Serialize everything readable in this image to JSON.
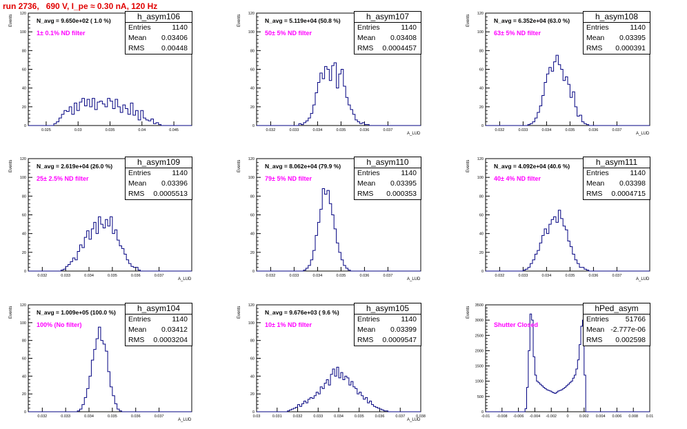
{
  "title": "run 2736,   690 V, I_pe ≈ 0.30 nA, 120 Hz",
  "chart_data": [
    {
      "type": "bar",
      "name": "h_asym106",
      "entries": "1140",
      "mean": "0.03406",
      "rms": "0.00448",
      "n_avg": "N_avg = 9.650e+02 ( 1.0 %)",
      "filter": "1± 0.1% ND filter",
      "xlim": [
        0.0222,
        0.0478
      ],
      "ylim": [
        0,
        120
      ],
      "xticks": [
        0.025,
        0.03,
        0.035,
        0.04,
        0.045
      ],
      "xtick_labels": [
        "0.025",
        "0.03",
        "0.035",
        "0.04",
        "0.045"
      ],
      "yticks": [
        0,
        20,
        40,
        60,
        80,
        100,
        120
      ],
      "ylabel": "Events",
      "xlabel": "",
      "bin_start": 0.0222,
      "bin_width": 0.0004,
      "values": [
        0,
        0,
        0,
        0,
        0,
        0,
        0,
        0,
        0,
        0,
        2,
        4,
        8,
        12,
        16,
        15,
        20,
        12,
        24,
        16,
        25,
        29,
        21,
        28,
        20,
        29,
        17,
        25,
        26,
        23,
        20,
        29,
        26,
        18,
        28,
        20,
        14,
        22,
        18,
        12,
        24,
        11,
        16,
        6,
        16,
        8,
        6,
        5,
        7,
        2,
        3,
        1,
        0,
        0,
        0,
        0,
        0,
        0,
        0,
        0,
        0,
        0,
        0,
        0
      ]
    },
    {
      "type": "bar",
      "name": "h_asym107",
      "entries": "1140",
      "mean": "0.03408",
      "rms": "0.0004457",
      "n_avg": "N_avg = 5.119e+04 (50.8 %)",
      "filter": "50± 5% ND filter",
      "xlim": [
        0.0314,
        0.0384
      ],
      "ylim": [
        0,
        120
      ],
      "xticks": [
        0.032,
        0.033,
        0.034,
        0.035,
        0.036,
        0.037
      ],
      "xtick_labels": [
        "0.032",
        "0.033",
        "0.034",
        "0.035",
        "0.036",
        "0.037"
      ],
      "yticks": [
        0,
        20,
        40,
        60,
        80,
        100,
        120
      ],
      "ylabel": "Events",
      "xlabel": "A_LUD",
      "bin_start": 0.0314,
      "bin_width": 0.0001,
      "values": [
        0,
        0,
        0,
        0,
        0,
        0,
        0,
        0,
        0,
        0,
        0,
        0,
        0,
        0,
        0,
        0,
        0,
        0,
        2,
        1,
        3,
        5,
        8,
        13,
        22,
        35,
        46,
        56,
        50,
        63,
        60,
        48,
        64,
        67,
        40,
        55,
        60,
        42,
        30,
        22,
        17,
        12,
        6,
        4,
        2,
        3,
        1,
        1,
        0,
        0,
        0,
        0,
        0,
        0,
        0,
        0,
        0,
        0,
        0,
        0,
        0,
        0,
        0,
        0,
        0,
        0,
        0,
        0,
        0,
        0
      ]
    },
    {
      "type": "bar",
      "name": "h_asym108",
      "entries": "1140",
      "mean": "0.03395",
      "rms": "0.000391",
      "n_avg": "N_avg = 6.352e+04 (63.0 %)",
      "filter": "63± 5% ND filter",
      "xlim": [
        0.0314,
        0.0384
      ],
      "ylim": [
        0,
        120
      ],
      "xticks": [
        0.032,
        0.033,
        0.034,
        0.035,
        0.036,
        0.037
      ],
      "xtick_labels": [
        "0.032",
        "0.033",
        "0.034",
        "0.035",
        "0.036",
        "0.037"
      ],
      "yticks": [
        0,
        20,
        40,
        60,
        80,
        100,
        120
      ],
      "ylabel": "Events",
      "xlabel": "A_LUD",
      "bin_start": 0.0314,
      "bin_width": 0.0001,
      "values": [
        0,
        0,
        0,
        0,
        0,
        0,
        0,
        0,
        0,
        0,
        0,
        0,
        0,
        0,
        0,
        0,
        0,
        0,
        1,
        2,
        4,
        8,
        14,
        21,
        32,
        46,
        55,
        62,
        58,
        68,
        75,
        65,
        60,
        48,
        52,
        44,
        30,
        36,
        20,
        10,
        11,
        4,
        2,
        1,
        0,
        0,
        0,
        0,
        0,
        0,
        0,
        0,
        0,
        0,
        0,
        0,
        0,
        0,
        0,
        0,
        0,
        0,
        0,
        0,
        0,
        0,
        0,
        0,
        0,
        0
      ]
    },
    {
      "type": "bar",
      "name": "h_asym109",
      "entries": "1140",
      "mean": "0.03396",
      "rms": "0.0005513",
      "n_avg": "N_avg = 2.619e+04 (26.0 %)",
      "filter": "25± 2.5% ND filter",
      "xlim": [
        0.0314,
        0.0384
      ],
      "ylim": [
        0,
        120
      ],
      "xticks": [
        0.032,
        0.033,
        0.034,
        0.035,
        0.036,
        0.037
      ],
      "xtick_labels": [
        "0.032",
        "0.033",
        "0.034",
        "0.035",
        "0.036",
        "0.037"
      ],
      "yticks": [
        0,
        20,
        40,
        60,
        80,
        100,
        120
      ],
      "ylabel": "Events",
      "xlabel": "A_LUD",
      "bin_start": 0.0314,
      "bin_width": 0.0001,
      "values": [
        0,
        0,
        0,
        0,
        0,
        0,
        0,
        0,
        0,
        0,
        0,
        0,
        0,
        0,
        1,
        2,
        5,
        7,
        10,
        14,
        12,
        21,
        28,
        25,
        36,
        43,
        34,
        45,
        52,
        40,
        58,
        50,
        46,
        55,
        48,
        58,
        40,
        44,
        33,
        27,
        24,
        18,
        12,
        8,
        5,
        4,
        4,
        1,
        0,
        0,
        0,
        0,
        0,
        0,
        0,
        0,
        0,
        0,
        0,
        0,
        0,
        0,
        0,
        0,
        0,
        0,
        0,
        0,
        0,
        0
      ]
    },
    {
      "type": "bar",
      "name": "h_asym110",
      "entries": "1140",
      "mean": "0.03395",
      "rms": "0.000353",
      "n_avg": "N_avg = 8.062e+04 (79.9 %)",
      "filter": "79± 5% ND filter",
      "xlim": [
        0.0314,
        0.0384
      ],
      "ylim": [
        0,
        120
      ],
      "xticks": [
        0.032,
        0.033,
        0.034,
        0.035,
        0.036,
        0.037
      ],
      "xtick_labels": [
        "0.032",
        "0.033",
        "0.034",
        "0.035",
        "0.036",
        "0.037"
      ],
      "yticks": [
        0,
        20,
        40,
        60,
        80,
        100,
        120
      ],
      "ylabel": "Events",
      "xlabel": "A_LUD",
      "bin_start": 0.0314,
      "bin_width": 0.0001,
      "values": [
        0,
        0,
        0,
        0,
        0,
        0,
        0,
        0,
        0,
        0,
        0,
        0,
        0,
        0,
        0,
        0,
        0,
        0,
        0,
        0,
        1,
        3,
        6,
        12,
        22,
        38,
        52,
        66,
        88,
        82,
        86,
        72,
        60,
        45,
        30,
        20,
        12,
        6,
        3,
        1,
        0,
        0,
        0,
        0,
        0,
        0,
        0,
        0,
        0,
        0,
        0,
        0,
        0,
        0,
        0,
        0,
        0,
        0,
        0,
        0,
        0,
        0,
        0,
        0,
        0,
        0,
        0,
        0,
        0,
        0
      ]
    },
    {
      "type": "bar",
      "name": "h_asym111",
      "entries": "1140",
      "mean": "0.03398",
      "rms": "0.0004715",
      "n_avg": "N_avg = 4.092e+04 (40.6 %)",
      "filter": "40± 4% ND filter",
      "xlim": [
        0.0314,
        0.0384
      ],
      "ylim": [
        0,
        120
      ],
      "xticks": [
        0.032,
        0.033,
        0.034,
        0.035,
        0.036,
        0.037
      ],
      "xtick_labels": [
        "0.032",
        "0.033",
        "0.034",
        "0.035",
        "0.036",
        "0.037"
      ],
      "yticks": [
        0,
        20,
        40,
        60,
        80,
        100,
        120
      ],
      "ylabel": "Events",
      "xlabel": "A_LUD",
      "bin_start": 0.0314,
      "bin_width": 0.0001,
      "values": [
        0,
        0,
        0,
        0,
        0,
        0,
        0,
        0,
        0,
        0,
        0,
        0,
        0,
        0,
        0,
        0,
        1,
        2,
        4,
        8,
        12,
        18,
        22,
        30,
        38,
        45,
        40,
        50,
        55,
        58,
        52,
        65,
        56,
        48,
        44,
        32,
        26,
        18,
        12,
        8,
        4,
        4,
        2,
        1,
        0,
        0,
        0,
        0,
        0,
        0,
        0,
        0,
        0,
        0,
        0,
        0,
        0,
        0,
        0,
        0,
        0,
        0,
        0,
        0,
        0,
        0,
        0,
        0,
        0,
        0
      ]
    },
    {
      "type": "bar",
      "name": "h_asym104",
      "entries": "1140",
      "mean": "0.03412",
      "rms": "0.0003204",
      "n_avg": "N_avg = 1.009e+05 (100.0 %)",
      "filter": "100% (No filter)",
      "xlim": [
        0.0314,
        0.0384
      ],
      "ylim": [
        0,
        120
      ],
      "xticks": [
        0.032,
        0.033,
        0.034,
        0.035,
        0.036,
        0.037
      ],
      "xtick_labels": [
        "0.032",
        "0.033",
        "0.034",
        "0.035",
        "0.036",
        "0.037"
      ],
      "yticks": [
        0,
        20,
        40,
        60,
        80,
        100,
        120
      ],
      "ylabel": "Events",
      "xlabel": "A_LUD",
      "bin_start": 0.0314,
      "bin_width": 0.0001,
      "values": [
        0,
        0,
        0,
        0,
        0,
        0,
        0,
        0,
        0,
        0,
        0,
        0,
        0,
        0,
        0,
        0,
        0,
        0,
        0,
        0,
        0,
        1,
        3,
        8,
        16,
        26,
        40,
        58,
        70,
        82,
        95,
        80,
        76,
        68,
        45,
        28,
        18,
        9,
        3,
        1,
        0,
        0,
        0,
        0,
        0,
        0,
        0,
        0,
        0,
        0,
        0,
        0,
        0,
        0,
        0,
        0,
        0,
        0,
        0,
        0,
        0,
        0,
        0,
        0,
        0,
        0,
        0,
        0,
        0,
        0
      ]
    },
    {
      "type": "bar",
      "name": "h_asym105",
      "entries": "1140",
      "mean": "0.03399",
      "rms": "0.0009547",
      "n_avg": "N_avg = 9.676e+03 ( 9.6 %)",
      "filter": "10± 1% ND filter",
      "xlim": [
        0.03,
        0.038
      ],
      "ylim": [
        0,
        120
      ],
      "xticks": [
        0.03,
        0.031,
        0.032,
        0.033,
        0.034,
        0.035,
        0.036,
        0.037,
        0.038
      ],
      "xtick_labels": [
        "0.03",
        "0.031",
        "0.032",
        "0.033",
        "0.034",
        "0.035",
        "0.036",
        "0.037",
        "0.038"
      ],
      "yticks": [
        0,
        20,
        40,
        60,
        80,
        100,
        120
      ],
      "ylabel": "Events",
      "xlabel": "A_LUD",
      "bin_start": 0.03,
      "bin_width": 0.0001,
      "values": [
        0,
        0,
        0,
        0,
        0,
        0,
        0,
        0,
        0,
        0,
        0,
        0,
        0,
        0,
        0,
        1,
        2,
        3,
        4,
        5,
        8,
        6,
        9,
        12,
        10,
        14,
        16,
        15,
        18,
        22,
        20,
        28,
        26,
        32,
        36,
        30,
        42,
        48,
        40,
        50,
        38,
        44,
        36,
        40,
        38,
        30,
        34,
        28,
        26,
        20,
        22,
        18,
        14,
        16,
        10,
        12,
        8,
        6,
        5,
        4,
        3,
        2,
        1,
        1,
        0,
        0,
        0,
        0,
        0,
        0,
        0,
        0,
        0,
        0,
        0,
        0,
        0,
        0,
        0,
        0
      ]
    },
    {
      "type": "bar",
      "name": "hPed_asym",
      "entries": "51766",
      "mean": "-2.777e-06",
      "rms": "0.002598",
      "n_avg": "",
      "filter": "Shutter Closed",
      "xlim": [
        -0.01,
        0.01
      ],
      "ylim": [
        0,
        3500
      ],
      "xticks": [
        -0.01,
        -0.008,
        -0.006,
        -0.004,
        -0.002,
        0,
        0.002,
        0.004,
        0.006,
        0.008,
        0.01
      ],
      "xtick_labels": [
        "-0.01",
        "-0.008",
        "-0.006",
        "-0.004",
        "-0.002",
        "0",
        "0.002",
        "0.004",
        "0.006",
        "0.008",
        "0.01"
      ],
      "yticks": [
        0,
        500,
        1000,
        1500,
        2000,
        2500,
        3000,
        3500
      ],
      "ylabel": "Events",
      "xlabel": "",
      "bin_start": -0.01,
      "bin_width": 0.0002,
      "values": [
        0,
        0,
        0,
        0,
        0,
        0,
        0,
        0,
        0,
        0,
        0,
        0,
        0,
        0,
        0,
        0,
        0,
        0,
        0,
        0,
        0,
        0,
        0,
        0,
        100,
        800,
        2000,
        3200,
        3000,
        1800,
        1200,
        1000,
        950,
        900,
        850,
        800,
        760,
        720,
        700,
        680,
        650,
        620,
        600,
        640,
        680,
        700,
        720,
        760,
        800,
        850,
        900,
        950,
        1000,
        1100,
        1200,
        1400,
        1700,
        2200,
        2800,
        3000,
        1200,
        0,
        0,
        0,
        0,
        0,
        0,
        0,
        0,
        0,
        0,
        0,
        0,
        0,
        0,
        0,
        0,
        0,
        0,
        0,
        0,
        0,
        0,
        0,
        0,
        0,
        0,
        0,
        0,
        0,
        0,
        0,
        0,
        0,
        0,
        0,
        0,
        0,
        0,
        0
      ]
    }
  ]
}
